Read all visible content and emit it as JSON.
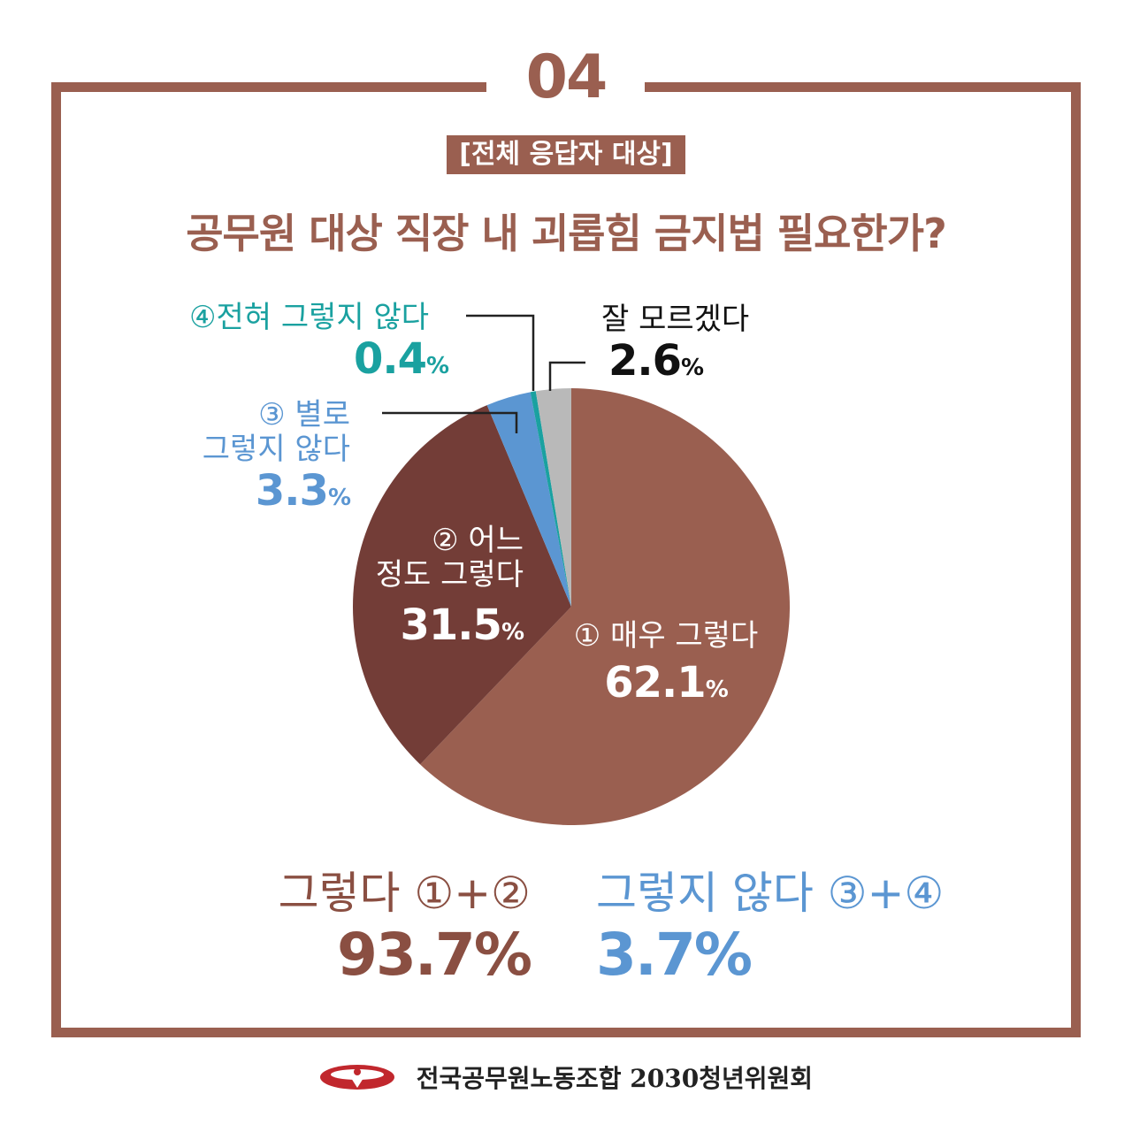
{
  "header": {
    "number": "04",
    "subtitle": "[전체 응답자 대상]",
    "title": "공무원 대상 직장 내 괴롭힘 금지법 필요한가?"
  },
  "colors": {
    "frame": "#9a5f50",
    "very_yes": "#9a5f50",
    "somewhat_yes": "#733d37",
    "somewhat_no": "#5b96d2",
    "not_at_all": "#1aa1a0",
    "dont_know": "#b9b9b9"
  },
  "labels": {
    "very_yes": {
      "text": "① 매우 그렇다",
      "value": "62.1",
      "pct": "%"
    },
    "somewhat_yes": {
      "line1": "② 어느",
      "line2": "정도 그렇다",
      "value": "31.5",
      "pct": "%"
    },
    "somewhat_no": {
      "line1": "③ 별로",
      "line2": "그렇지 않다",
      "value": "3.3",
      "pct": "%"
    },
    "not_at_all": {
      "text": "④전혀 그렇지 않다",
      "value": "0.4",
      "pct": "%"
    },
    "dont_know": {
      "text": "잘 모르겠다",
      "value": "2.6",
      "pct": "%"
    }
  },
  "summary": {
    "yes_label": "그렇다 ①+②",
    "yes_value": "93.7%",
    "no_label": "그렇지 않다 ③+④",
    "no_value": "3.7%"
  },
  "footer": {
    "text": "전국공무원노동조합 2030청년위원회"
  },
  "chart_data": {
    "type": "pie",
    "start": "12 o'clock",
    "direction": "clockwise",
    "categories": [
      "① 매우 그렇다",
      "② 어느 정도 그렇다",
      "③ 별로 그렇지 않다",
      "④전혀 그렇지 않다",
      "잘 모르겠다"
    ],
    "values": [
      62.1,
      31.5,
      3.3,
      0.4,
      2.6
    ],
    "colors": [
      "#9a5f50",
      "#733d37",
      "#5b96d2",
      "#1aa1a0",
      "#b9b9b9"
    ]
  }
}
